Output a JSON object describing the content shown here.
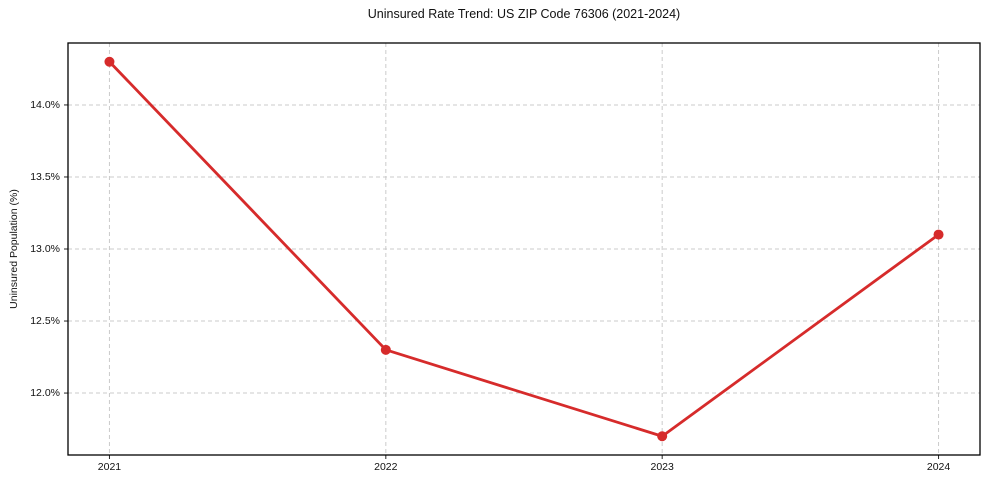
{
  "chart_data": {
    "type": "line",
    "title": "Uninsured Rate Trend: US ZIP Code 76306 (2021-2024)",
    "xlabel": "",
    "ylabel": "Uninsured Population (%)",
    "x": [
      2021,
      2022,
      2023,
      2024
    ],
    "x_tick_labels": [
      "2021",
      "2022",
      "2023",
      "2024"
    ],
    "values": [
      14.3,
      12.3,
      11.7,
      13.1
    ],
    "yticks": [
      12.0,
      12.5,
      13.0,
      13.5,
      14.0
    ],
    "y_tick_labels": [
      "12.0%",
      "12.5%",
      "13.0%",
      "13.5%",
      "14.0%"
    ],
    "xlim": [
      2020.85,
      2024.15
    ],
    "ylim": [
      11.57,
      14.43
    ],
    "grid": "dashed-both-axes",
    "legend": "none",
    "line_color": "#d62b2b",
    "marker": "circle",
    "background_color": "#ffffff"
  }
}
